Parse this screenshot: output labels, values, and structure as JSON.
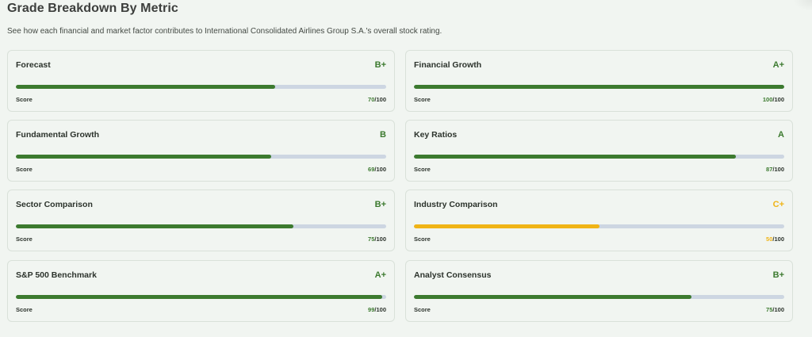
{
  "header": {
    "title": "Grade Breakdown By Metric",
    "subtitle": "See how each financial and market factor contributes to International Consolidated Airlines Group S.A.'s overall stock rating."
  },
  "colors": {
    "good": "#3c7a2f",
    "average": "#f0b416",
    "track": "#cdd6e2"
  },
  "metrics": [
    {
      "name": "Forecast",
      "grade": "B+",
      "score_label": "Score",
      "score": 70,
      "max": "/100",
      "status": "good"
    },
    {
      "name": "Financial Growth",
      "grade": "A+",
      "score_label": "Score",
      "score": 100,
      "max": "/100",
      "status": "good"
    },
    {
      "name": "Fundamental Growth",
      "grade": "B",
      "score_label": "Score",
      "score": 69,
      "max": "/100",
      "status": "good"
    },
    {
      "name": "Key Ratios",
      "grade": "A",
      "score_label": "Score",
      "score": 87,
      "max": "/100",
      "status": "good"
    },
    {
      "name": "Sector Comparison",
      "grade": "B+",
      "score_label": "Score",
      "score": 75,
      "max": "/100",
      "status": "good"
    },
    {
      "name": "Industry Comparison",
      "grade": "C+",
      "score_label": "Score",
      "score": 50,
      "max": "/100",
      "status": "average"
    },
    {
      "name": "S&P 500 Benchmark",
      "grade": "A+",
      "score_label": "Score",
      "score": 99,
      "max": "/100",
      "status": "good"
    },
    {
      "name": "Analyst Consensus",
      "grade": "B+",
      "score_label": "Score",
      "score": 75,
      "max": "/100",
      "status": "good"
    }
  ]
}
